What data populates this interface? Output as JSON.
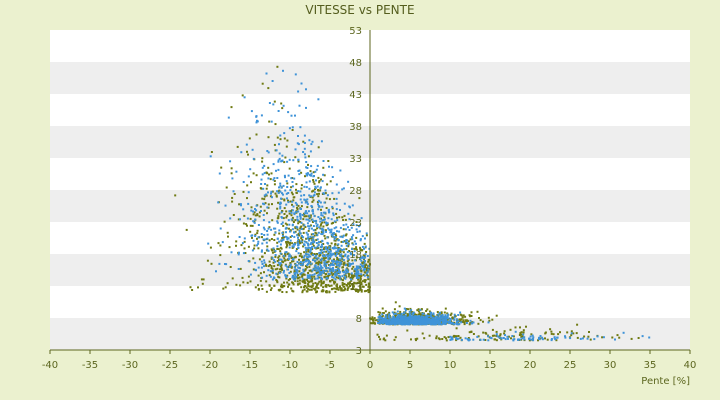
{
  "chart_data": {
    "type": "scatter",
    "title": "VITESSE vs PENTE",
    "xlabel": "Pente [%]",
    "ylabel": "",
    "xlim": [
      -40,
      40
    ],
    "ylim": [
      3,
      53
    ],
    "x_ticks": [
      -40,
      -35,
      -30,
      -25,
      -20,
      -15,
      -10,
      -5,
      0,
      5,
      10,
      15,
      20,
      25,
      30,
      35,
      40
    ],
    "y_ticks": [
      3,
      8,
      13,
      18,
      23,
      28,
      33,
      38,
      43,
      48,
      53
    ],
    "x_tick_labels": [
      "-40",
      "-35",
      "-30",
      "-25",
      "-20",
      "-15",
      "-10",
      "-5",
      "0",
      "5",
      "10",
      "15",
      "20",
      "25",
      "30",
      "35",
      "40"
    ],
    "y_tick_labels": [
      "3",
      "8",
      "13",
      "18",
      "23",
      "28",
      "33",
      "38",
      "43",
      "48",
      "53"
    ],
    "grid": "horizontal bands",
    "legend": "none",
    "colors": {
      "page_background": "#ebf1cf",
      "band_light": "#ffffff",
      "band_shaded": "#eeeeee",
      "axis": "#5c661f",
      "text": "#5c661f",
      "series_1": "#6f7a12",
      "series_2": "#3f93d8"
    },
    "series": [
      {
        "color": "#6f7a12",
        "clusters": [
          {
            "count": 1100,
            "x_mean": -6.5,
            "x_sd": 5.5,
            "y_mean": 14,
            "y_sd": 9,
            "x_min": -33,
            "x_max": 0,
            "y_min": 4,
            "y_max": 48
          },
          {
            "count": 550,
            "x_mean": 6,
            "x_sd": 3.2,
            "y_mean": 8,
            "y_sd": 1.6,
            "x_min": 0,
            "x_max": 19,
            "y_min": 4,
            "y_max": 13
          },
          {
            "count": 120,
            "x_mean": 16,
            "x_sd": 8,
            "y_mean": 5.5,
            "y_sd": 1.5,
            "x_min": 0,
            "x_max": 36,
            "y_min": 4,
            "y_max": 9
          }
        ]
      },
      {
        "color": "#3f93d8",
        "clusters": [
          {
            "count": 900,
            "x_mean": -7,
            "x_sd": 4.8,
            "y_mean": 16,
            "y_sd": 10,
            "x_min": -26,
            "x_max": 0,
            "y_min": 4,
            "y_max": 47
          },
          {
            "count": 750,
            "x_mean": 5.5,
            "x_sd": 2.8,
            "y_mean": 8,
            "y_sd": 1.2,
            "x_min": 1,
            "x_max": 16,
            "y_min": 5,
            "y_max": 12
          },
          {
            "count": 80,
            "x_mean": 18,
            "x_sd": 7,
            "y_mean": 5.5,
            "y_sd": 0.8,
            "x_min": 10,
            "x_max": 38,
            "y_min": 4.5,
            "y_max": 8
          }
        ]
      }
    ]
  }
}
